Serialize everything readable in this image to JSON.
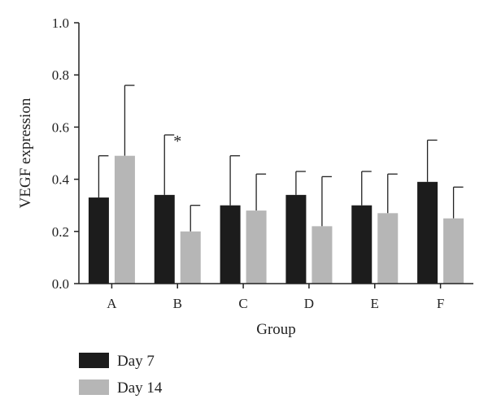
{
  "chart_data": {
    "type": "bar",
    "xlabel": "Group",
    "ylabel": "VEGF expression",
    "ylim": [
      0,
      1.0
    ],
    "yticks": [
      "0.0",
      "0.2",
      "0.4",
      "0.6",
      "0.8",
      "1.0"
    ],
    "categories": [
      "A",
      "B",
      "C",
      "D",
      "E",
      "F"
    ],
    "series": [
      {
        "name": "Day 7",
        "color": "#1c1c1c",
        "values": [
          0.33,
          0.34,
          0.3,
          0.34,
          0.3,
          0.39
        ],
        "error_upper": [
          0.49,
          0.57,
          0.49,
          0.43,
          0.43,
          0.55
        ]
      },
      {
        "name": "Day 14",
        "color": "#b6b6b6",
        "values": [
          0.49,
          0.2,
          0.28,
          0.22,
          0.27,
          0.25
        ],
        "error_upper": [
          0.76,
          0.3,
          0.42,
          0.41,
          0.42,
          0.37
        ]
      }
    ],
    "annotations": [
      {
        "text": "*",
        "category": "B",
        "series": "Day 7"
      }
    ],
    "grid": false,
    "legend_position": "bottom-left"
  }
}
